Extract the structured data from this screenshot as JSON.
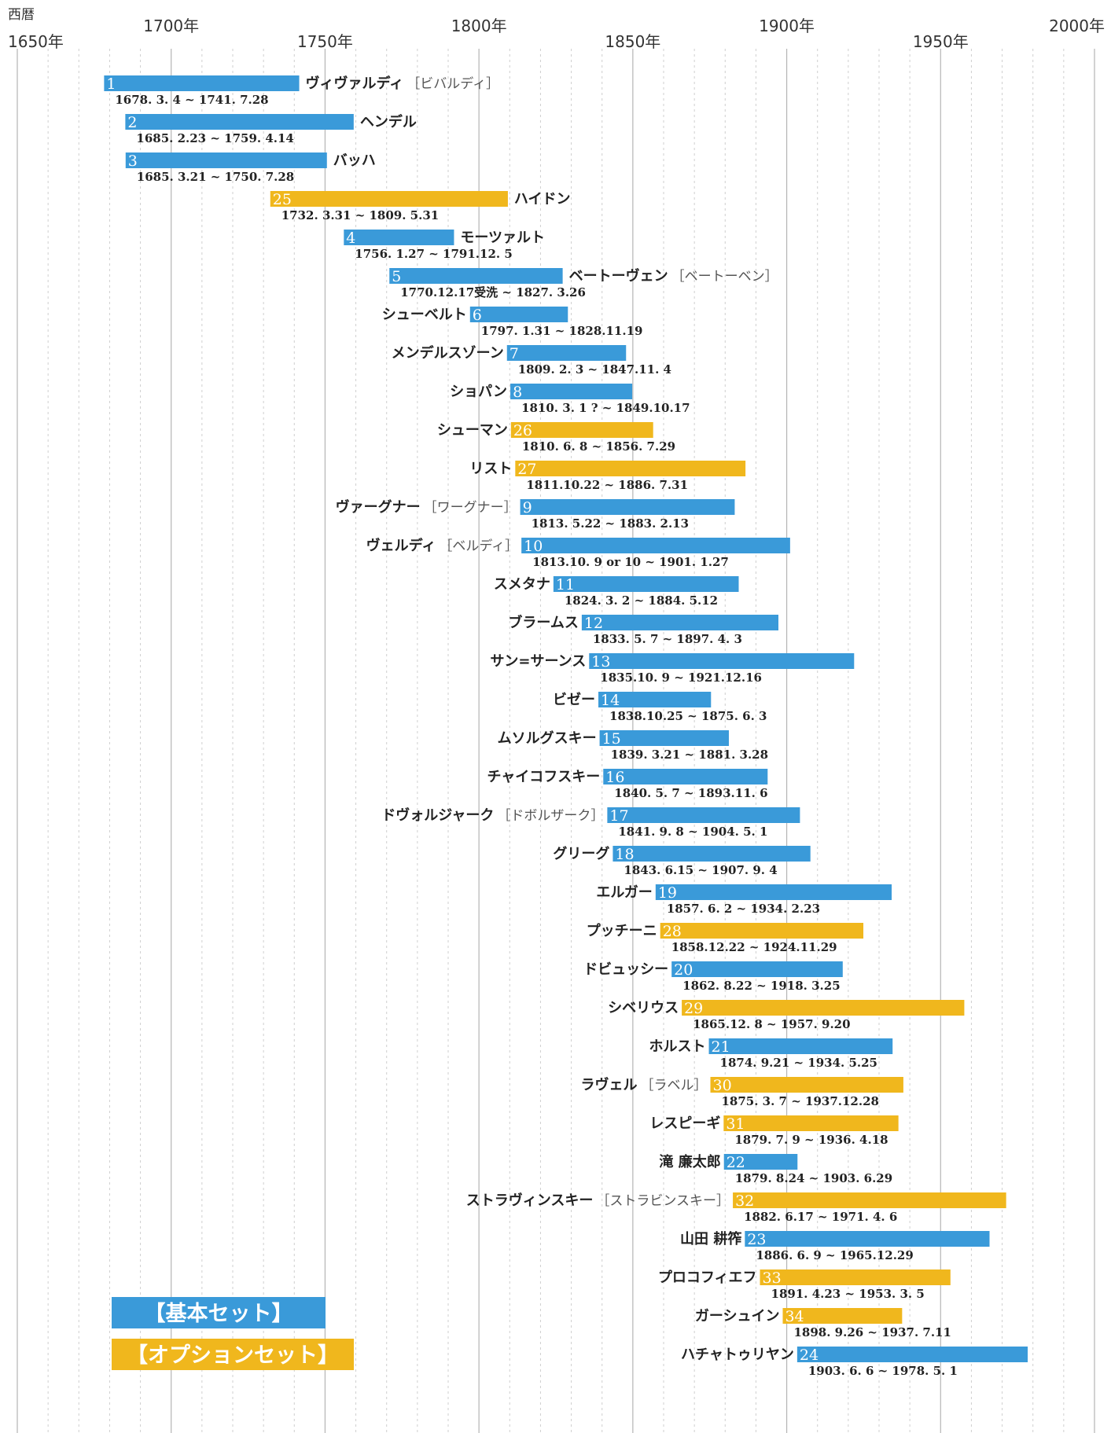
{
  "chart_data": {
    "type": "bar",
    "orientation": "horizontal",
    "axis_label": "西暦",
    "xlim": [
      1650,
      2000
    ],
    "ticks": [
      {
        "year": 1650,
        "label": "1650年",
        "row": "low"
      },
      {
        "year": 1700,
        "label": "1700年",
        "row": "high"
      },
      {
        "year": 1750,
        "label": "1750年",
        "row": "low"
      },
      {
        "year": 1800,
        "label": "1800年",
        "row": "high"
      },
      {
        "year": 1850,
        "label": "1850年",
        "row": "low"
      },
      {
        "year": 1900,
        "label": "1900年",
        "row": "high"
      },
      {
        "year": 1950,
        "label": "1950年",
        "row": "low"
      },
      {
        "year": 2000,
        "label": "2000年",
        "row": "high"
      }
    ],
    "grid_minor_step": 10,
    "grid_major_step": 50,
    "legend": [
      {
        "set": "basic",
        "label": "【基本セット】",
        "color": "#3a9ad9"
      },
      {
        "set": "option",
        "label": "【オプションセット】",
        "color": "#f0b71d"
      }
    ],
    "series": [
      {
        "num": "1",
        "name": "ヴィヴァルディ",
        "alt": "［ビバルディ］",
        "dates": "1678. 3. 4 ~ 1741. 7.28",
        "start": 1678.2,
        "end": 1741.6,
        "set": "basic",
        "label_side": "right"
      },
      {
        "num": "2",
        "name": "ヘンデル",
        "alt": "",
        "dates": "1685. 2.23 ~ 1759. 4.14",
        "start": 1685.1,
        "end": 1759.3,
        "set": "basic",
        "label_side": "right"
      },
      {
        "num": "3",
        "name": "バッハ",
        "alt": "",
        "dates": "1685. 3.21 ~ 1750. 7.28",
        "start": 1685.2,
        "end": 1750.6,
        "set": "basic",
        "label_side": "right"
      },
      {
        "num": "25",
        "name": "ハイドン",
        "alt": "",
        "dates": "1732. 3.31 ~ 1809. 5.31",
        "start": 1732.2,
        "end": 1809.4,
        "set": "option",
        "label_side": "right"
      },
      {
        "num": "4",
        "name": "モーツァルト",
        "alt": "",
        "dates": "1756. 1.27 ~ 1791.12. 5",
        "start": 1756.1,
        "end": 1791.9,
        "set": "basic",
        "label_side": "right"
      },
      {
        "num": "5",
        "name": "ベートーヴェン",
        "alt": "［ベートーベン］",
        "dates": "1770.12.17受洗 ~ 1827. 3.26",
        "start": 1770.9,
        "end": 1827.2,
        "set": "basic",
        "label_side": "right"
      },
      {
        "num": "6",
        "name": "シューベルト",
        "alt": "",
        "dates": "1797. 1.31 ~ 1828.11.19",
        "start": 1797.1,
        "end": 1828.9,
        "set": "basic",
        "label_side": "left"
      },
      {
        "num": "7",
        "name": "メンデルスゾーン",
        "alt": "",
        "dates": "1809. 2. 3 ~ 1847.11. 4",
        "start": 1809.1,
        "end": 1847.8,
        "set": "basic",
        "label_side": "left"
      },
      {
        "num": "8",
        "name": "ショパン",
        "alt": "",
        "dates": "1810. 3. 1 ? ~ 1849.10.17",
        "start": 1810.2,
        "end": 1849.8,
        "set": "basic",
        "label_side": "left"
      },
      {
        "num": "26",
        "name": "シューマン",
        "alt": "",
        "dates": "1810. 6. 8 ~ 1856. 7.29",
        "start": 1810.4,
        "end": 1856.6,
        "set": "option",
        "label_side": "left"
      },
      {
        "num": "27",
        "name": "リスト",
        "alt": "",
        "dates": "1811.10.22 ~ 1886. 7.31",
        "start": 1811.8,
        "end": 1886.6,
        "set": "option",
        "label_side": "left"
      },
      {
        "num": "9",
        "name": "ヴァーグナー",
        "alt": "［ワーグナー］",
        "dates": "1813. 5.22 ~ 1883. 2.13",
        "start": 1813.4,
        "end": 1883.1,
        "set": "basic",
        "label_side": "left"
      },
      {
        "num": "10",
        "name": "ヴェルディ",
        "alt": "［ベルディ］",
        "dates": "1813.10. 9 or 10 ~ 1901. 1.27",
        "start": 1813.8,
        "end": 1901.1,
        "set": "basic",
        "label_side": "left"
      },
      {
        "num": "11",
        "name": "スメタナ",
        "alt": "",
        "dates": "1824. 3. 2 ~ 1884. 5.12",
        "start": 1824.2,
        "end": 1884.4,
        "set": "basic",
        "label_side": "left"
      },
      {
        "num": "12",
        "name": "ブラームス",
        "alt": "",
        "dates": "1833. 5. 7 ~ 1897. 4. 3",
        "start": 1833.4,
        "end": 1897.3,
        "set": "basic",
        "label_side": "left"
      },
      {
        "num": "13",
        "name": "サン=サーンス",
        "alt": "",
        "dates": "1835.10. 9 ~ 1921.12.16",
        "start": 1835.8,
        "end": 1921.9,
        "set": "basic",
        "label_side": "left"
      },
      {
        "num": "14",
        "name": "ビゼー",
        "alt": "",
        "dates": "1838.10.25 ~ 1875. 6. 3",
        "start": 1838.8,
        "end": 1875.4,
        "set": "basic",
        "label_side": "left"
      },
      {
        "num": "15",
        "name": "ムソルグスキー",
        "alt": "",
        "dates": "1839. 3.21 ~ 1881. 3.28",
        "start": 1839.2,
        "end": 1881.2,
        "set": "basic",
        "label_side": "left"
      },
      {
        "num": "16",
        "name": "チャイコフスキー",
        "alt": "",
        "dates": "1840. 5. 7 ~ 1893.11. 6",
        "start": 1840.4,
        "end": 1893.8,
        "set": "basic",
        "label_side": "left"
      },
      {
        "num": "17",
        "name": "ドヴォルジャーク",
        "alt": "［ドボルザーク］",
        "dates": "1841. 9. 8 ~ 1904. 5. 1",
        "start": 1841.7,
        "end": 1904.3,
        "set": "basic",
        "label_side": "left"
      },
      {
        "num": "18",
        "name": "グリーグ",
        "alt": "",
        "dates": "1843. 6.15 ~ 1907. 9. 4",
        "start": 1843.5,
        "end": 1907.7,
        "set": "basic",
        "label_side": "left"
      },
      {
        "num": "19",
        "name": "エルガー",
        "alt": "",
        "dates": "1857. 6. 2 ~ 1934. 2.23",
        "start": 1857.4,
        "end": 1934.1,
        "set": "basic",
        "label_side": "left"
      },
      {
        "num": "28",
        "name": "プッチーニ",
        "alt": "",
        "dates": "1858.12.22 ~ 1924.11.29",
        "start": 1858.9,
        "end": 1924.9,
        "set": "option",
        "label_side": "left"
      },
      {
        "num": "20",
        "name": "ドビュッシー",
        "alt": "",
        "dates": "1862. 8.22 ~ 1918. 3.25",
        "start": 1862.6,
        "end": 1918.2,
        "set": "basic",
        "label_side": "left"
      },
      {
        "num": "29",
        "name": "シベリウス",
        "alt": "",
        "dates": "1865.12. 8 ~ 1957. 9.20",
        "start": 1865.9,
        "end": 1957.7,
        "set": "option",
        "label_side": "left"
      },
      {
        "num": "21",
        "name": "ホルスト",
        "alt": "",
        "dates": "1874. 9.21 ~ 1934. 5.25",
        "start": 1874.7,
        "end": 1934.4,
        "set": "basic",
        "label_side": "left"
      },
      {
        "num": "30",
        "name": "ラヴェル",
        "alt": "［ラベル］",
        "dates": "1875. 3. 7 ~ 1937.12.28",
        "start": 1875.2,
        "end": 1937.9,
        "set": "option",
        "label_side": "left"
      },
      {
        "num": "31",
        "name": "レスピーギ",
        "alt": "",
        "dates": "1879. 7. 9 ~ 1936. 4.18",
        "start": 1879.5,
        "end": 1936.3,
        "set": "option",
        "label_side": "left"
      },
      {
        "num": "22",
        "name": "滝 廉太郎",
        "alt": "",
        "dates": "1879. 8.24 ~ 1903. 6.29",
        "start": 1879.6,
        "end": 1903.5,
        "set": "basic",
        "label_side": "left"
      },
      {
        "num": "32",
        "name": "ストラヴィンスキー",
        "alt": "［ストラビンスキー］",
        "dates": "1882. 6.17 ~ 1971. 4. 6",
        "start": 1882.5,
        "end": 1971.3,
        "set": "option",
        "label_side": "left"
      },
      {
        "num": "23",
        "name": "山田 耕筰",
        "alt": "",
        "dates": "1886. 6. 9 ~ 1965.12.29",
        "start": 1886.4,
        "end": 1965.9,
        "set": "basic",
        "label_side": "left"
      },
      {
        "num": "33",
        "name": "プロコフィエフ",
        "alt": "",
        "dates": "1891. 4.23 ~ 1953. 3. 5",
        "start": 1891.3,
        "end": 1953.2,
        "set": "option",
        "label_side": "left"
      },
      {
        "num": "34",
        "name": "ガーシュイン",
        "alt": "",
        "dates": "1898. 9.26 ~ 1937. 7.11",
        "start": 1898.7,
        "end": 1937.5,
        "set": "option",
        "label_side": "left"
      },
      {
        "num": "24",
        "name": "ハチャトゥリヤン",
        "alt": "",
        "dates": "1903. 6. 6 ~ 1978. 5. 1",
        "start": 1903.4,
        "end": 1978.3,
        "set": "basic",
        "label_side": "left"
      }
    ]
  }
}
